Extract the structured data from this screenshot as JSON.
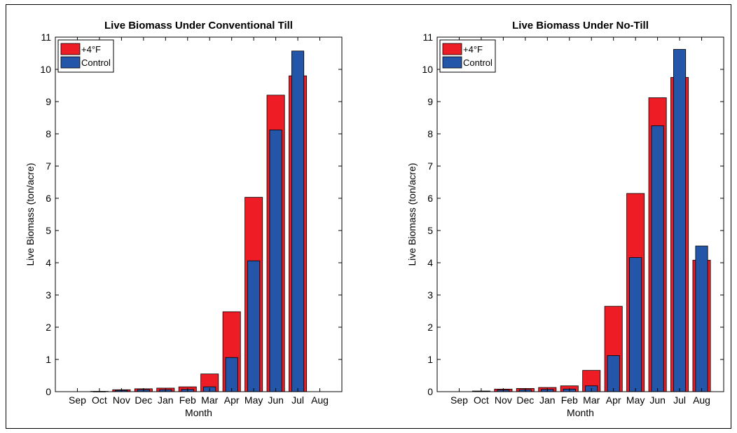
{
  "colors": {
    "plus4": "#ee1c25",
    "control": "#2356a8",
    "edge": "#000000"
  },
  "chart_data": [
    {
      "type": "bar",
      "title": "Live Biomass Under Conventional Till",
      "xlabel": "Month",
      "ylabel": "Live Biomass (ton/acre)",
      "ylim": [
        0,
        11
      ],
      "yticks": [
        0,
        1,
        2,
        3,
        4,
        5,
        6,
        7,
        8,
        9,
        10,
        11
      ],
      "grid": false,
      "legend": "top-left",
      "categories": [
        "Sep",
        "Oct",
        "Nov",
        "Dec",
        "Jan",
        "Feb",
        "Mar",
        "Apr",
        "May",
        "Jun",
        "Jul",
        "Aug"
      ],
      "series": [
        {
          "name": "+4°F",
          "color": "#ee1c25",
          "values": [
            0,
            0.01,
            0.06,
            0.09,
            0.11,
            0.15,
            0.55,
            2.48,
            6.03,
            9.2,
            9.8,
            0
          ]
        },
        {
          "name": "Control",
          "color": "#2356a8",
          "values": [
            0,
            0.005,
            0.04,
            0.06,
            0.06,
            0.07,
            0.15,
            1.06,
            4.06,
            8.12,
            10.57,
            0
          ]
        }
      ]
    },
    {
      "type": "bar",
      "title": "Live Biomass Under No-Till",
      "xlabel": "Month",
      "ylabel": "Live Biomass (ton/acre)",
      "ylim": [
        0,
        11
      ],
      "yticks": [
        0,
        1,
        2,
        3,
        4,
        5,
        6,
        7,
        8,
        9,
        10,
        11
      ],
      "grid": false,
      "legend": "top-left",
      "categories": [
        "Sep",
        "Oct",
        "Nov",
        "Dec",
        "Jan",
        "Feb",
        "Mar",
        "Apr",
        "May",
        "Jun",
        "Jul",
        "Aug"
      ],
      "series": [
        {
          "name": "+4°F",
          "color": "#ee1c25",
          "values": [
            0,
            0.02,
            0.08,
            0.1,
            0.13,
            0.18,
            0.66,
            2.65,
            6.15,
            9.12,
            9.75,
            4.08
          ]
        },
        {
          "name": "Control",
          "color": "#2356a8",
          "values": [
            0,
            0.01,
            0.05,
            0.06,
            0.07,
            0.08,
            0.18,
            1.12,
            4.16,
            8.25,
            10.62,
            4.52
          ]
        }
      ]
    }
  ]
}
